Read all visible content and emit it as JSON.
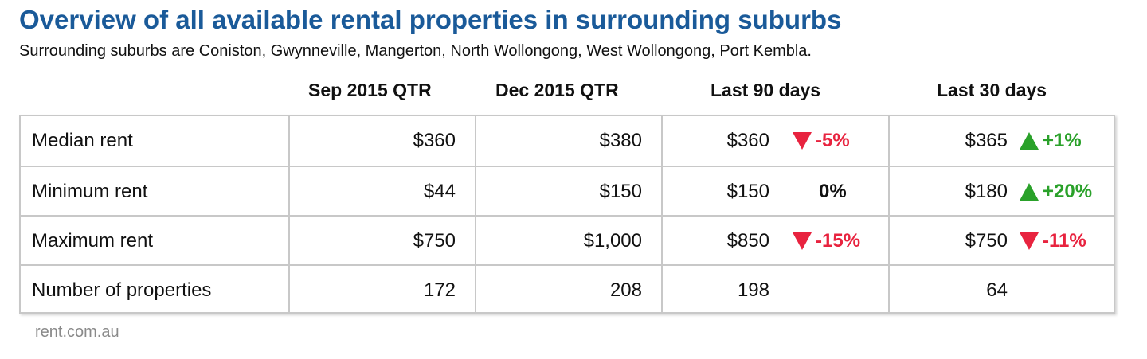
{
  "title": "Overview of all available rental properties in surrounding suburbs",
  "subtitle": "Surrounding suburbs are Coniston, Gwynneville, Mangerton, North Wollongong, West Wollongong, Port Kembla.",
  "columns": [
    "Sep 2015 QTR",
    "Dec 2015 QTR",
    "Last 90 days",
    "Last 30 days"
  ],
  "rows": [
    {
      "label": "Median rent",
      "sep2015": "$360",
      "dec2015": "$380",
      "last90": "$360",
      "last90_change": "-5%",
      "last90_dir": "down",
      "last30": "$365",
      "last30_change": "+1%",
      "last30_dir": "up"
    },
    {
      "label": "Minimum rent",
      "sep2015": "$44",
      "dec2015": "$150",
      "last90": "$150",
      "last90_change": "0%",
      "last90_dir": "none",
      "last30": "$180",
      "last30_change": "+20%",
      "last30_dir": "up"
    },
    {
      "label": "Maximum rent",
      "sep2015": "$750",
      "dec2015": "$1,000",
      "last90": "$850",
      "last90_change": "-15%",
      "last90_dir": "down",
      "last30": "$750",
      "last30_change": "-11%",
      "last30_dir": "down"
    },
    {
      "label": "Number of properties",
      "sep2015": "172",
      "dec2015": "208",
      "last90": "198",
      "last90_change": "",
      "last90_dir": "none",
      "last30": "64",
      "last30_change": "",
      "last30_dir": "none"
    }
  ],
  "source": "rent.com.au",
  "colors": {
    "title": "#1a5a99",
    "down": "#e8233f",
    "up": "#2aa12a",
    "border": "#c8c8c8",
    "source": "#8a8a8a"
  },
  "icons": {
    "down": "triangle-down-icon",
    "up": "triangle-up-icon"
  }
}
